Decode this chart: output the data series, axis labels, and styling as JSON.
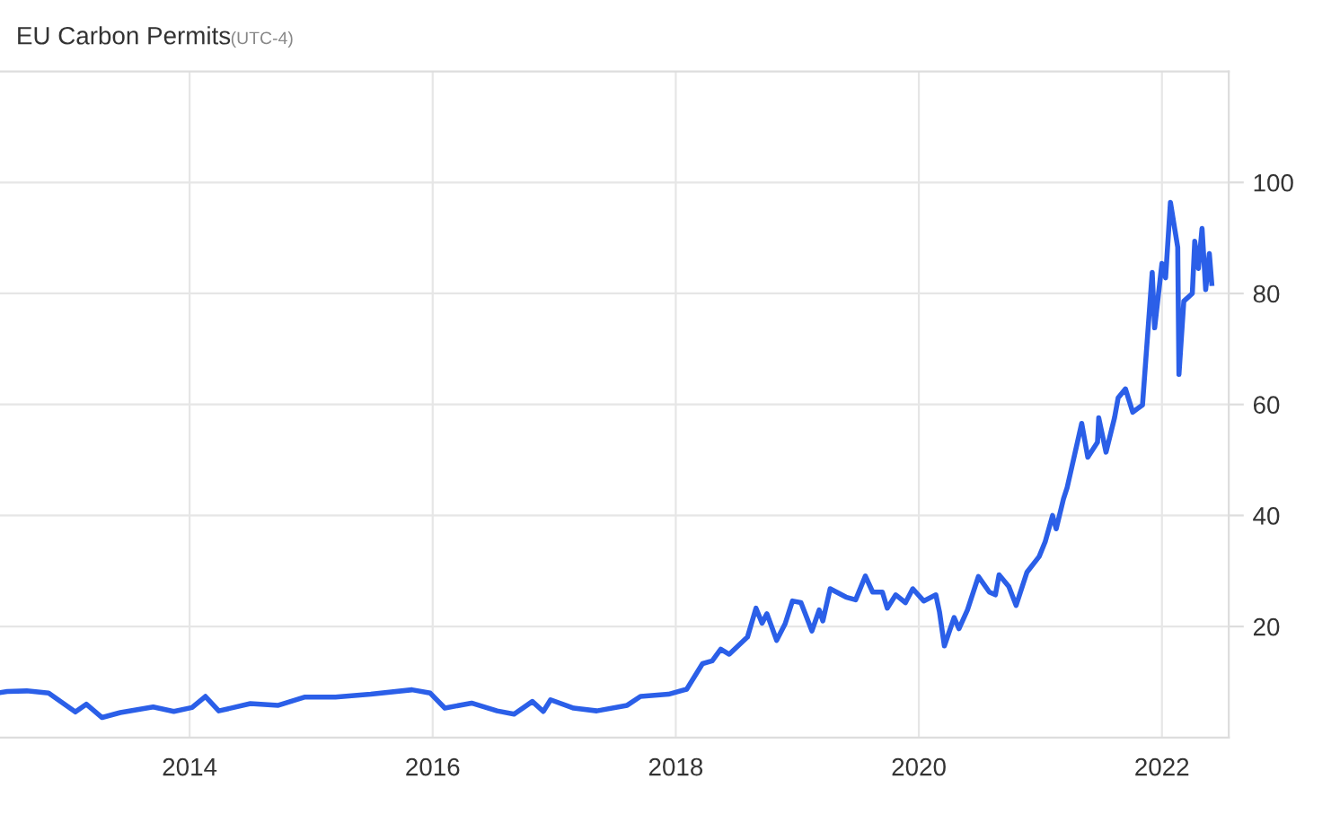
{
  "chart_data": {
    "type": "line",
    "title": "EU Carbon Permits",
    "subtitle": "(UTC-4)",
    "x": [
      2012.44,
      2012.5,
      2012.66,
      2012.84,
      2013.06,
      2013.15,
      2013.28,
      2013.43,
      2013.7,
      2013.87,
      2014.02,
      2014.13,
      2014.24,
      2014.5,
      2014.73,
      2014.95,
      2015.2,
      2015.49,
      2015.83,
      2015.98,
      2016.1,
      2016.32,
      2016.53,
      2016.67,
      2016.82,
      2016.91,
      2016.97,
      2017.16,
      2017.35,
      2017.6,
      2017.71,
      2017.94,
      2018.09,
      2018.22,
      2018.3,
      2018.37,
      2018.44,
      2018.59,
      2018.66,
      2018.71,
      2018.75,
      2018.83,
      2018.9,
      2018.96,
      2019.03,
      2019.12,
      2019.18,
      2019.21,
      2019.27,
      2019.4,
      2019.48,
      2019.56,
      2019.62,
      2019.7,
      2019.74,
      2019.81,
      2019.89,
      2019.95,
      2020.04,
      2020.14,
      2020.17,
      2020.21,
      2020.29,
      2020.33,
      2020.4,
      2020.49,
      2020.58,
      2020.63,
      2020.66,
      2020.74,
      2020.8,
      2020.89,
      2020.99,
      2021.04,
      2021.1,
      2021.13,
      2021.19,
      2021.22,
      2021.34,
      2021.39,
      2021.47,
      2021.48,
      2021.54,
      2021.61,
      2021.64,
      2021.7,
      2021.76,
      2021.84,
      2021.92,
      2021.94,
      2022.0,
      2022.03,
      2022.07,
      2022.13,
      2022.14,
      2022.18,
      2022.25,
      2022.27,
      2022.3,
      2022.33,
      2022.36,
      2022.39,
      2022.41
    ],
    "series": [
      {
        "color": "#2b5fe8",
        "values": [
          8.1,
          8.3,
          8.4,
          8,
          4.6,
          6,
          3.6,
          4.5,
          5.5,
          4.7,
          5.4,
          7.4,
          4.8,
          6.1,
          5.8,
          7.3,
          7.3,
          7.8,
          8.6,
          8,
          5.3,
          6.2,
          4.8,
          4.2,
          6.5,
          4.7,
          6.8,
          5.3,
          4.8,
          5.8,
          7.4,
          7.8,
          8.7,
          13.3,
          13.8,
          15.9,
          15,
          18.1,
          23.3,
          20.6,
          22.3,
          17.5,
          20.5,
          24.6,
          24.3,
          19.2,
          23,
          21,
          26.8,
          25.3,
          24.8,
          29.1,
          26.2,
          26.2,
          23.3,
          25.7,
          24.3,
          26.8,
          24.6,
          25.7,
          22.6,
          16.5,
          21.6,
          19.6,
          23,
          29,
          26.2,
          25.7,
          29.3,
          27.2,
          23.8,
          29.8,
          32.6,
          35.3,
          40,
          37.6,
          43,
          45,
          56.6,
          50.5,
          53.2,
          57.6,
          51.4,
          57.6,
          61.2,
          62.8,
          58.6,
          59.9,
          83.8,
          73.8,
          85.4,
          82.8,
          96.4,
          88.3,
          65.4,
          78.6,
          80,
          89.4,
          84.5,
          91.7,
          80.7,
          87.2,
          81.8
        ]
      }
    ],
    "xlim": [
      2012.44,
      2022.55
    ],
    "xticks": [
      2014,
      2016,
      2018,
      2020,
      2022
    ],
    "ylim": [
      0,
      120
    ],
    "yticks": [
      20,
      40,
      60,
      80,
      100
    ],
    "grid": true,
    "line_style": "solid",
    "marker": "none"
  }
}
